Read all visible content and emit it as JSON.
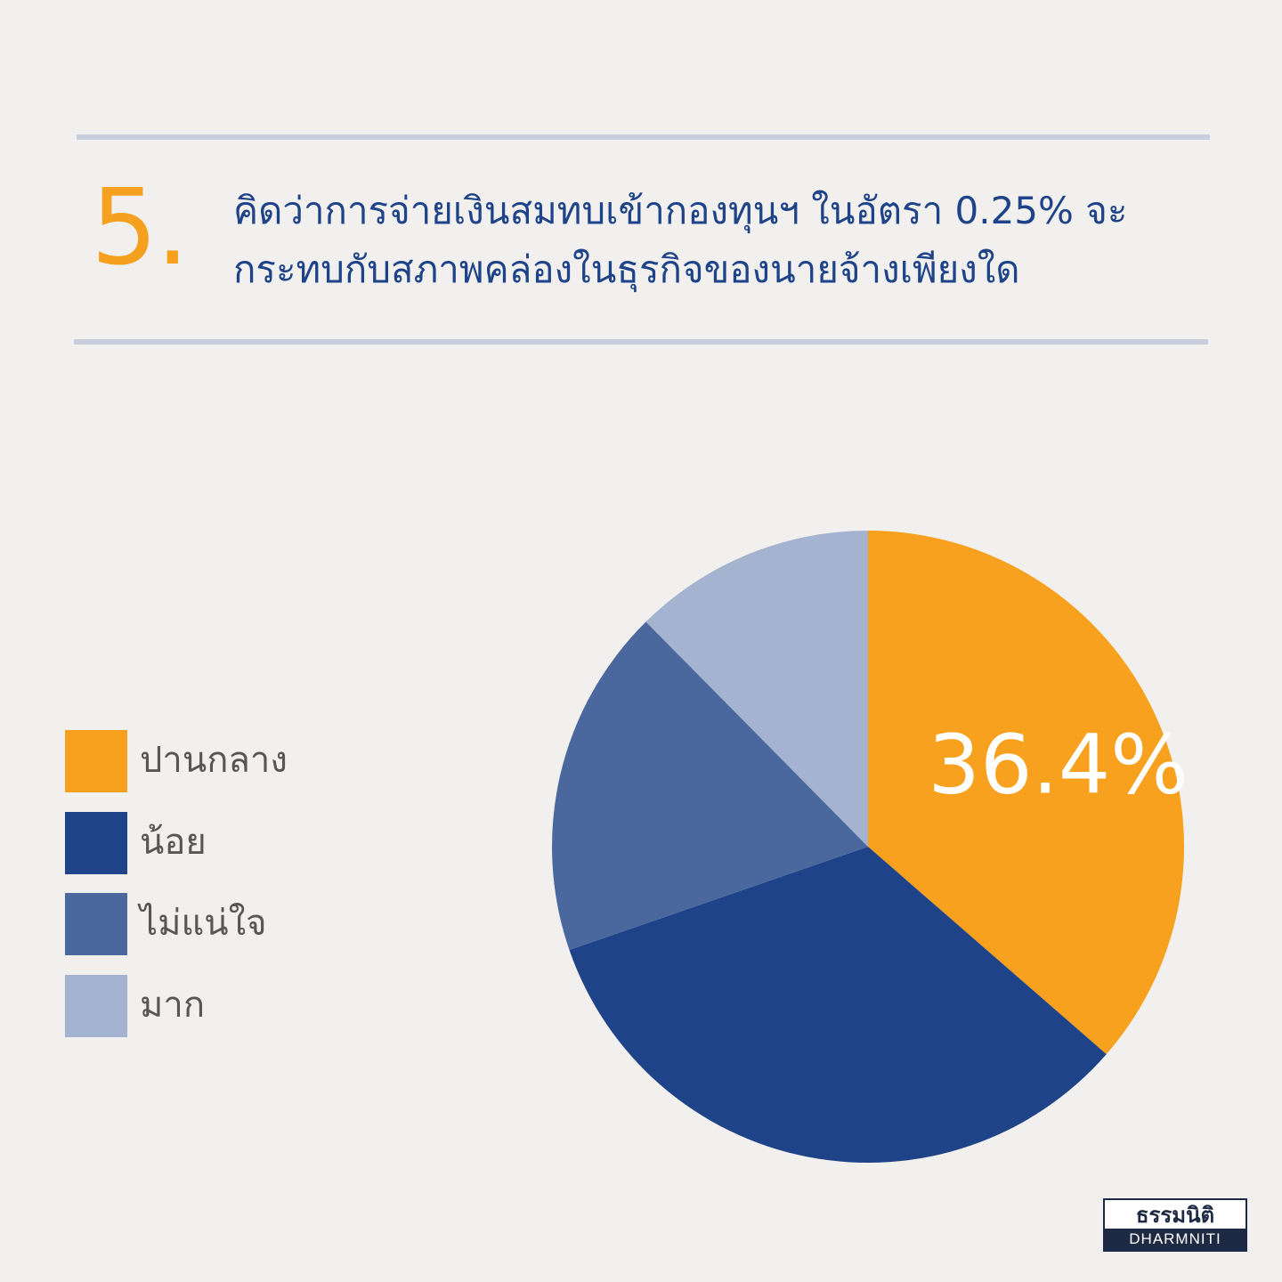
{
  "header": {
    "number": "5.",
    "question": "คิดว่าการจ่ายเงินสมทบเข้ากองทุนฯ ในอัตรา 0.25% จะกระทบกับสภาพคล่องในธุรกิจของนายจ้างเพียงใด"
  },
  "legend": {
    "items": [
      {
        "label": "ปานกลาง",
        "color": "#f7a11e"
      },
      {
        "label": "น้อย",
        "color": "#1f4388"
      },
      {
        "label": "ไม่แน่ใจ",
        "color": "#4a689e"
      },
      {
        "label": "มาก",
        "color": "#a4b3cf"
      }
    ]
  },
  "chart_data": {
    "type": "pie",
    "categories": [
      "ปานกลาง",
      "น้อย",
      "ไม่แน่ใจ",
      "มาก"
    ],
    "values": [
      36.4,
      33.3,
      17.9,
      12.4
    ],
    "colors": [
      "#f7a11e",
      "#1f4388",
      "#4a689e",
      "#a4b3cf"
    ],
    "data_labels": [
      "36.4%",
      "",
      "",
      ""
    ],
    "legend_position": "left"
  },
  "logo": {
    "thai": "ธรรมนิติ",
    "english": "DHARMNITI"
  }
}
